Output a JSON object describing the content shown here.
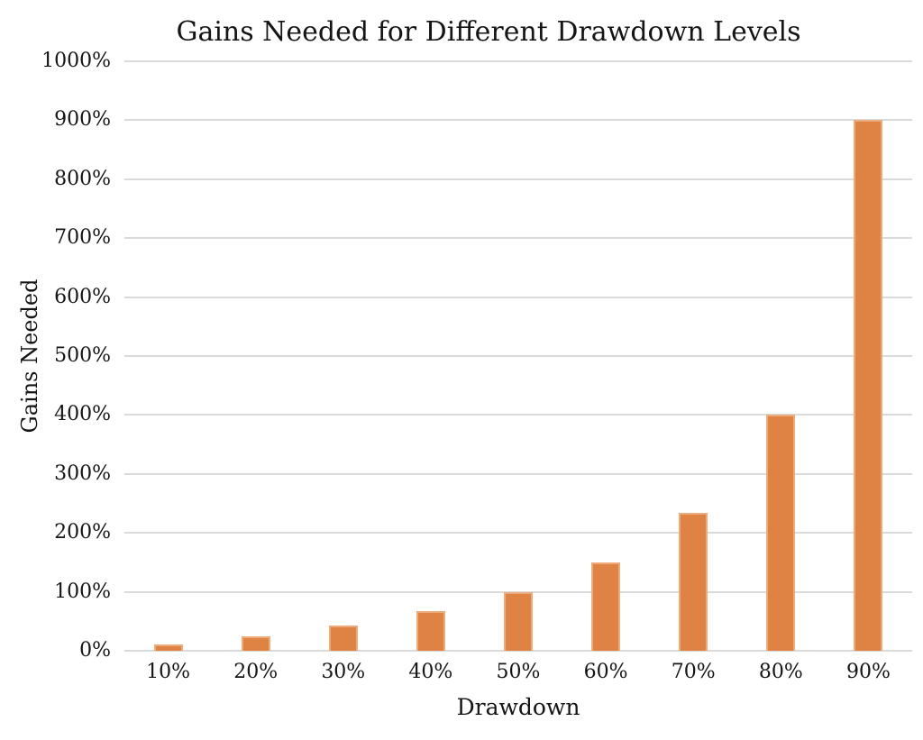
{
  "chart_data": {
    "type": "bar",
    "title": "Gains Needed for Different Drawdown Levels",
    "xlabel": "Drawdown",
    "ylabel": "Gains Needed",
    "categories": [
      "10%",
      "20%",
      "30%",
      "40%",
      "50%",
      "60%",
      "70%",
      "80%",
      "90%"
    ],
    "values": [
      11.1,
      25,
      42.9,
      66.7,
      100,
      150,
      233.3,
      400,
      900
    ],
    "ylim": [
      0,
      1000
    ],
    "y_tick_labels": [
      "0%",
      "100%",
      "200%",
      "300%",
      "400%",
      "500%",
      "600%",
      "700%",
      "800%",
      "900%",
      "1000%"
    ],
    "y_tick_values": [
      0,
      100,
      200,
      300,
      400,
      500,
      600,
      700,
      800,
      900,
      1000
    ],
    "grid": true,
    "legend": "none",
    "colors": {
      "bar_fill": "#de8344",
      "bar_edge": "#edaa7b",
      "gridline": "#dadada",
      "text": "#151515",
      "background": "#ffffff"
    }
  }
}
